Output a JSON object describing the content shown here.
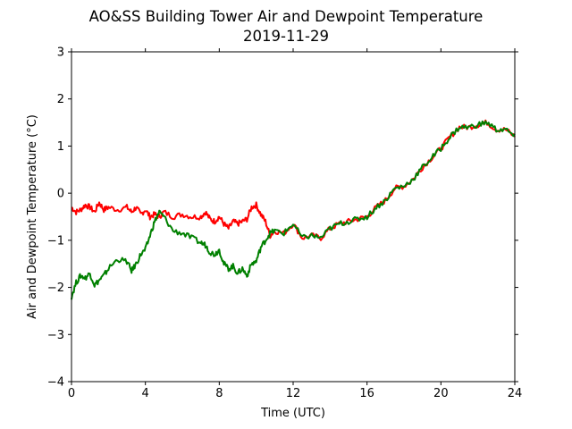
{
  "chart_data": {
    "type": "line",
    "title": "AO&SS Building Tower Air and Dewpoint Temperature",
    "subtitle": "2019-11-29",
    "xlabel": "Time (UTC)",
    "ylabel": "Air and Dewpoint Temperature (°C)",
    "xlim": [
      0,
      24
    ],
    "ylim": [
      -4,
      3
    ],
    "xticks": [
      0,
      4,
      8,
      12,
      16,
      20,
      24
    ],
    "yticks": [
      -4,
      -3,
      -2,
      -1,
      0,
      1,
      2,
      3
    ],
    "grid": false,
    "legend": "none",
    "series": [
      {
        "color": "#ff0000",
        "x": [
          0,
          0.25,
          0.5,
          0.75,
          1.0,
          1.25,
          1.5,
          1.75,
          2.0,
          2.5,
          3.0,
          3.25,
          3.5,
          3.75,
          4.0,
          4.25,
          4.5,
          4.75,
          5.0,
          5.5,
          6.0,
          6.5,
          7.0,
          7.25,
          7.5,
          7.75,
          8.0,
          8.25,
          8.5,
          8.75,
          9.0,
          9.25,
          9.5,
          9.75,
          10.0,
          10.25,
          10.5,
          10.75,
          11.0,
          11.5,
          12.0,
          12.5,
          13.0,
          13.5,
          14.0,
          14.5,
          15.0,
          15.5,
          16.0,
          16.5,
          17.0,
          17.5,
          18.0,
          18.5,
          19.0,
          19.5,
          20.0,
          20.5,
          21.0,
          21.5,
          22.0,
          22.5,
          23.0,
          23.5,
          24.0
        ],
        "y": [
          -0.3,
          -0.4,
          -0.35,
          -0.25,
          -0.3,
          -0.4,
          -0.2,
          -0.35,
          -0.3,
          -0.35,
          -0.3,
          -0.4,
          -0.3,
          -0.45,
          -0.35,
          -0.5,
          -0.45,
          -0.5,
          -0.4,
          -0.5,
          -0.45,
          -0.5,
          -0.5,
          -0.4,
          -0.55,
          -0.6,
          -0.5,
          -0.65,
          -0.75,
          -0.6,
          -0.65,
          -0.6,
          -0.55,
          -0.3,
          -0.25,
          -0.45,
          -0.6,
          -0.9,
          -0.8,
          -0.85,
          -0.65,
          -0.95,
          -0.9,
          -0.95,
          -0.75,
          -0.65,
          -0.6,
          -0.55,
          -0.5,
          -0.3,
          -0.15,
          0.1,
          0.15,
          0.3,
          0.55,
          0.75,
          0.95,
          1.2,
          1.4,
          1.4,
          1.45,
          1.5,
          1.35,
          1.35,
          1.2
        ]
      },
      {
        "color": "#008000",
        "x": [
          0,
          0.25,
          0.5,
          0.75,
          1.0,
          1.25,
          1.5,
          1.75,
          2.0,
          2.5,
          3.0,
          3.25,
          3.5,
          3.75,
          4.0,
          4.25,
          4.5,
          4.75,
          5.0,
          5.5,
          6.0,
          6.5,
          7.0,
          7.25,
          7.5,
          7.75,
          8.0,
          8.25,
          8.5,
          8.75,
          9.0,
          9.25,
          9.5,
          9.75,
          10.0,
          10.25,
          10.5,
          10.75,
          11.0,
          11.5,
          12.0,
          12.5,
          13.0,
          13.5,
          14.0,
          14.5,
          15.0,
          15.5,
          16.0,
          16.5,
          17.0,
          17.5,
          18.0,
          18.5,
          19.0,
          19.5,
          20.0,
          20.5,
          21.0,
          21.5,
          22.0,
          22.5,
          23.0,
          23.5,
          24.0
        ],
        "y": [
          -2.2,
          -1.9,
          -1.75,
          -1.8,
          -1.7,
          -1.95,
          -1.85,
          -1.75,
          -1.6,
          -1.4,
          -1.45,
          -1.65,
          -1.5,
          -1.3,
          -1.2,
          -0.9,
          -0.6,
          -0.4,
          -0.5,
          -0.8,
          -0.85,
          -0.95,
          -1.05,
          -1.1,
          -1.25,
          -1.3,
          -1.2,
          -1.5,
          -1.6,
          -1.55,
          -1.7,
          -1.6,
          -1.75,
          -1.5,
          -1.45,
          -1.15,
          -1.0,
          -0.85,
          -0.8,
          -0.85,
          -0.65,
          -0.95,
          -0.9,
          -0.95,
          -0.75,
          -0.65,
          -0.6,
          -0.55,
          -0.5,
          -0.3,
          -0.15,
          0.1,
          0.15,
          0.3,
          0.55,
          0.75,
          0.95,
          1.2,
          1.4,
          1.4,
          1.45,
          1.5,
          1.35,
          1.35,
          1.2
        ]
      }
    ]
  }
}
